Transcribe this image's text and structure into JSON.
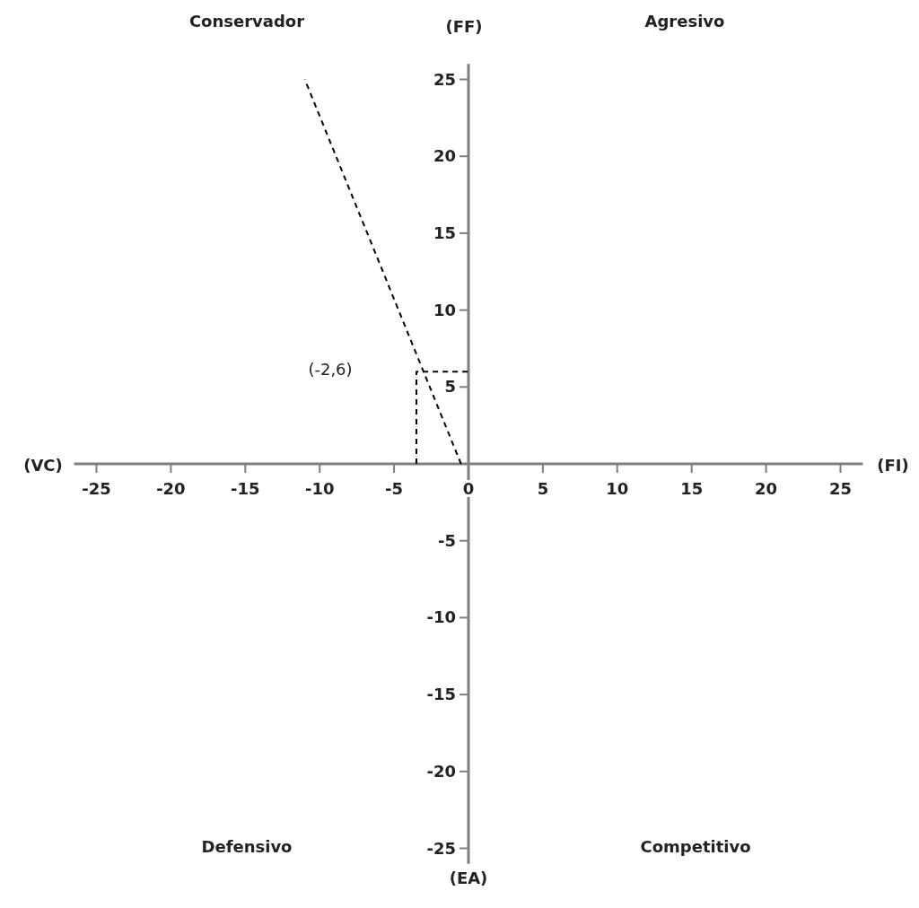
{
  "chart_data": {
    "type": "line",
    "xlabel": "(FI)",
    "ylabel": "(FF)",
    "xlim": [
      -26.5,
      26.5
    ],
    "ylim": [
      -26,
      26
    ],
    "xticks": [
      -25,
      -20,
      -15,
      -10,
      -5,
      0,
      5,
      10,
      15,
      20,
      25
    ],
    "yticks": [
      -25,
      -20,
      -15,
      -10,
      -5,
      5,
      10,
      15,
      20,
      25
    ],
    "grid": false,
    "marker": "none",
    "line_style": "dashed",
    "series": [
      {
        "color": "#000000",
        "x": [
          -0.5,
          -11
        ],
        "values": [
          0,
          25
        ]
      },
      {
        "color": "#000000",
        "x": [
          -3.5,
          -3.5,
          0
        ],
        "values": [
          0,
          6,
          6
        ]
      }
    ],
    "annotations": [
      "Conservador",
      "Agresivo",
      "Defensivo",
      "Competitivo",
      "(VC)",
      "(EA)",
      "(-2,6)"
    ]
  }
}
